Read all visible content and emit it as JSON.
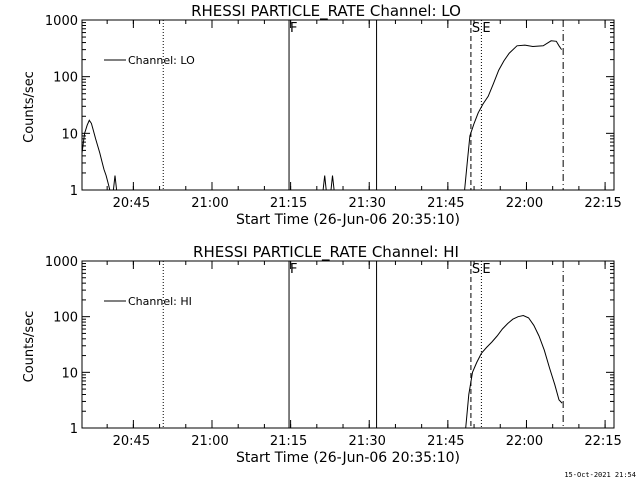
{
  "chart_data": [
    {
      "type": "line",
      "title": "RHESSI PARTICLE_RATE Channel: LO",
      "xlabel": "Start Time (26-Jun-06 20:35:10)",
      "ylabel": "Counts/sec",
      "y_scale": "log",
      "ylim": [
        1,
        1000
      ],
      "y_ticks": [
        "1",
        "10",
        "100",
        "1000"
      ],
      "x_units": "minutes after 20:35:10",
      "xlim": [
        0,
        101.5
      ],
      "x_ticks": [
        {
          "value": 9.8,
          "label": "20:45"
        },
        {
          "value": 24.8,
          "label": "21:00"
        },
        {
          "value": 39.8,
          "label": "21:15"
        },
        {
          "value": 54.8,
          "label": "21:30"
        },
        {
          "value": 69.8,
          "label": "21:45"
        },
        {
          "value": 84.8,
          "label": "22:00"
        },
        {
          "value": 99.8,
          "label": "22:15"
        }
      ],
      "legend": {
        "label": "Channel: LO",
        "location": "top-left"
      },
      "markers": [
        {
          "x": 15.5,
          "style": "dotted",
          "label": ""
        },
        {
          "x": 39.5,
          "style": "solid",
          "label": "F"
        },
        {
          "x": 56.2,
          "style": "solid",
          "label": ""
        },
        {
          "x": 74.2,
          "style": "dashed",
          "label": "S"
        },
        {
          "x": 76.2,
          "style": "dotted",
          "label": "E"
        },
        {
          "x": 91.8,
          "style": "dashdot",
          "label": ""
        }
      ],
      "series": [
        {
          "name": "Channel: LO",
          "segments": [
            {
              "x": [
                0,
                0.5,
                1.0,
                1.4,
                1.8,
                2.2,
                2.6,
                3.0,
                3.4,
                3.8,
                4.2,
                4.6,
                5.0,
                5.3
              ],
              "y": [
                4.5,
                10,
                14,
                17,
                15,
                11,
                8,
                6,
                4.5,
                3.2,
                2.3,
                1.8,
                1.3,
                1.0
              ]
            },
            {
              "x": [
                6.0,
                6.3,
                6.6
              ],
              "y": [
                1.0,
                1.8,
                1.0
              ]
            },
            {
              "x": [
                46.0,
                46.3,
                46.6
              ],
              "y": [
                1.0,
                1.8,
                1.0
              ]
            },
            {
              "x": [
                47.5,
                47.8,
                48.1
              ],
              "y": [
                1.0,
                1.8,
                1.0
              ]
            },
            {
              "x": [
                73.0,
                73.5,
                74.0,
                74.8,
                75.6,
                76.5,
                77.5,
                78.5,
                79.5,
                80.5,
                81.5,
                83.0,
                84.5,
                86.0,
                88.0,
                89.5,
                90.5,
                91.0,
                91.5
              ],
              "y": [
                1.0,
                3.0,
                9.0,
                15,
                23,
                33,
                45,
                75,
                130,
                190,
                260,
                350,
                360,
                340,
                350,
                430,
                420,
                350,
                300
              ]
            }
          ]
        }
      ]
    },
    {
      "type": "line",
      "title": "RHESSI PARTICLE_RATE Channel: HI",
      "xlabel": "Start Time (26-Jun-06 20:35:10)",
      "ylabel": "Counts/sec",
      "y_scale": "log",
      "ylim": [
        1,
        1000
      ],
      "y_ticks": [
        "1",
        "10",
        "100",
        "1000"
      ],
      "x_units": "minutes after 20:35:10",
      "xlim": [
        0,
        101.5
      ],
      "x_ticks": [
        {
          "value": 9.8,
          "label": "20:45"
        },
        {
          "value": 24.8,
          "label": "21:00"
        },
        {
          "value": 39.8,
          "label": "21:15"
        },
        {
          "value": 54.8,
          "label": "21:30"
        },
        {
          "value": 69.8,
          "label": "21:45"
        },
        {
          "value": 84.8,
          "label": "22:00"
        },
        {
          "value": 99.8,
          "label": "22:15"
        }
      ],
      "legend": {
        "label": "Channel: HI",
        "location": "top-left"
      },
      "markers": [
        {
          "x": 15.5,
          "style": "dotted",
          "label": ""
        },
        {
          "x": 39.5,
          "style": "solid",
          "label": "F"
        },
        {
          "x": 56.2,
          "style": "solid",
          "label": ""
        },
        {
          "x": 74.2,
          "style": "dashed",
          "label": "S"
        },
        {
          "x": 76.2,
          "style": "dotted",
          "label": "E"
        },
        {
          "x": 91.8,
          "style": "dashdot",
          "label": ""
        }
      ],
      "series": [
        {
          "name": "Channel: HI",
          "segments": [
            {
              "x": [
                73.2,
                73.8,
                74.5,
                75.3,
                76.2,
                77.2,
                78.2,
                79.2,
                80.2,
                81.2,
                82.2,
                83.2,
                84.2,
                85.2,
                86.2,
                87.2,
                88.2,
                89.2,
                90.2,
                91.0,
                91.6
              ],
              "y": [
                1.0,
                4.0,
                10,
                15,
                22,
                28,
                35,
                45,
                60,
                75,
                90,
                100,
                105,
                95,
                70,
                45,
                25,
                12,
                6,
                3.2,
                2.8
              ]
            }
          ]
        }
      ]
    }
  ],
  "footer": {
    "timestamp": "15-Oct-2021 21:54"
  }
}
